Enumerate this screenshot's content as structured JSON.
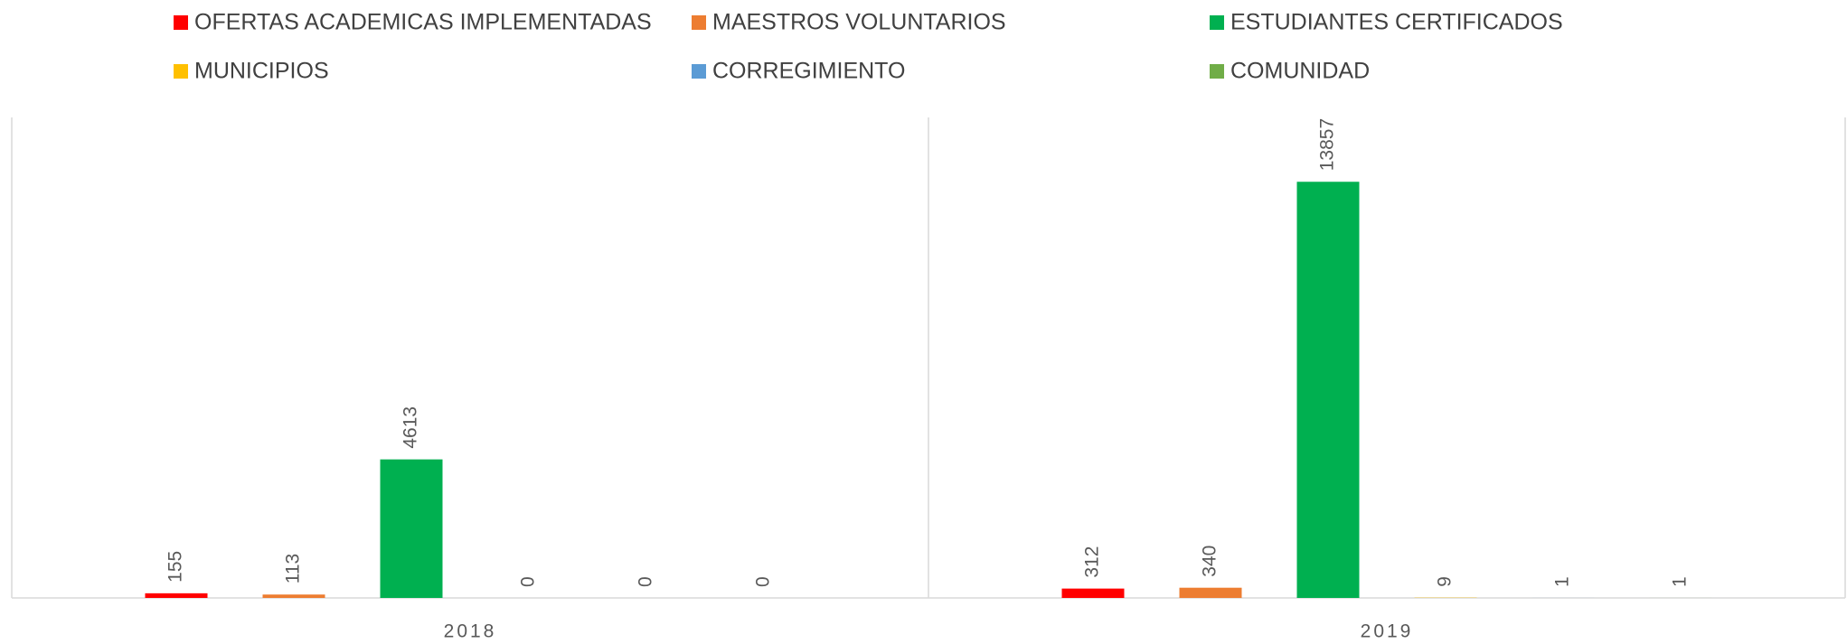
{
  "chart_data": {
    "type": "bar",
    "categories": [
      "2018",
      "2019"
    ],
    "series": [
      {
        "name": "OFERTAS ACADEMICAS IMPLEMENTADAS",
        "color": "#ff0000",
        "values": [
          155,
          312
        ]
      },
      {
        "name": "MAESTROS VOLUNTARIOS",
        "color": "#ed7d31",
        "values": [
          113,
          340
        ]
      },
      {
        "name": "ESTUDIANTES CERTIFICADOS",
        "color": "#00b050",
        "values": [
          4613,
          13857
        ]
      },
      {
        "name": "MUNICIPIOS",
        "color": "#ffc000",
        "values": [
          0,
          9
        ]
      },
      {
        "name": "CORREGIMIENTO",
        "color": "#5b9bd5",
        "values": [
          0,
          1
        ]
      },
      {
        "name": "COMUNIDAD",
        "color": "#70ad47",
        "values": [
          0,
          1
        ]
      }
    ],
    "ylim": [
      0,
      16000
    ],
    "legend": "top"
  }
}
